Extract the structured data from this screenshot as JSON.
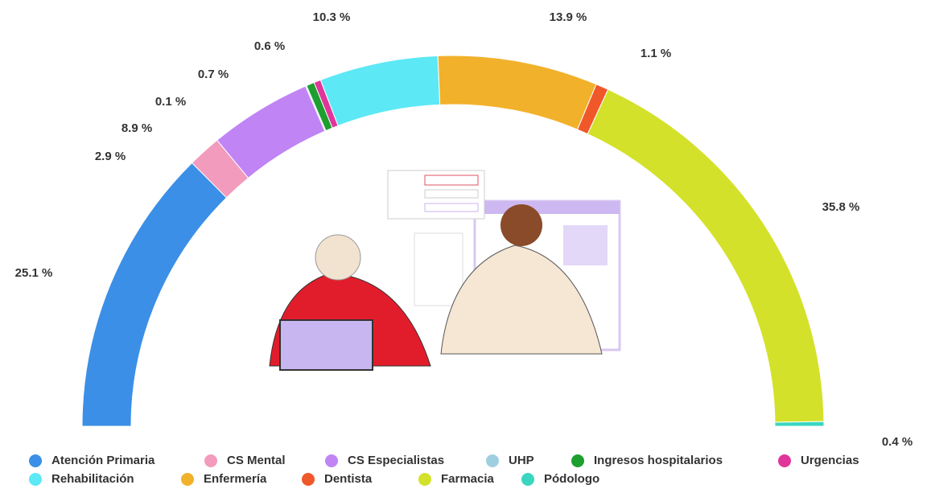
{
  "chart_data": {
    "type": "half-donut",
    "categories": [
      "Atención Primaria",
      "CS Mental",
      "CS Especialistas",
      "UHP",
      "Ingresos hospitalarios",
      "Urgencias",
      "Rehabilitación",
      "Enfermería",
      "Dentista",
      "Farmacia",
      "Pódologo"
    ],
    "values": [
      25.1,
      2.9,
      8.9,
      0.1,
      0.7,
      0.6,
      10.3,
      13.9,
      1.1,
      35.8,
      0.4
    ],
    "value_labels": [
      "25.1 %",
      "2.9 %",
      "8.9 %",
      "0.1 %",
      "0.7 %",
      "0.6 %",
      "10.3 %",
      "13.9 %",
      "1.1 %",
      "35.8 %",
      "0.4 %"
    ],
    "colors": [
      "#3b8fe6",
      "#f29bbd",
      "#c084f5",
      "#9ecfe0",
      "#1e9e2e",
      "#e0359a",
      "#5ce8f5",
      "#f2b12b",
      "#f0582a",
      "#d4e12a",
      "#3ad6c0"
    ],
    "legend": "bottom"
  }
}
